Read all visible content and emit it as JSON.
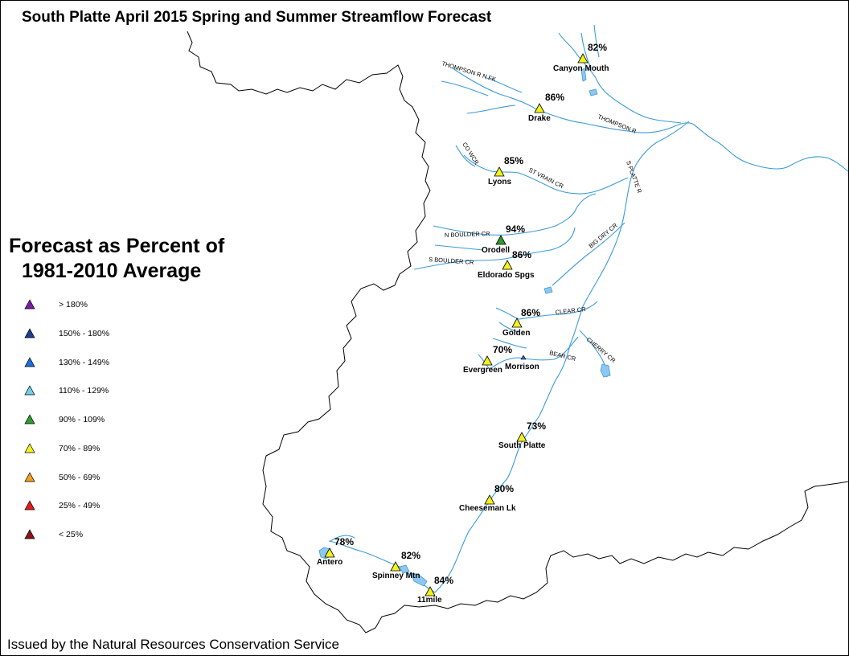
{
  "title": "South Platte April 2015 Spring and Summer Streamflow Forecast",
  "footer": "Issued by the Natural Resources Conservation Service",
  "legend": {
    "title_line1": "Forecast as Percent of",
    "title_line2": "1981-2010 Average",
    "items": [
      {
        "label": "> 180%",
        "color": "#7b1fa2"
      },
      {
        "label": "150% - 180%",
        "color": "#1a3f8f"
      },
      {
        "label": "130% - 149%",
        "color": "#1e6fd9"
      },
      {
        "label": "110% - 129%",
        "color": "#6fd0e8"
      },
      {
        "label": "90% - 109%",
        "color": "#2e9b2e"
      },
      {
        "label": "70% - 89%",
        "color": "#f2f21e"
      },
      {
        "label": "50% - 69%",
        "color": "#f2a01e"
      },
      {
        "label": "25% - 49%",
        "color": "#e21b1b"
      },
      {
        "label": "< 25%",
        "color": "#8b1515"
      }
    ]
  },
  "sites": [
    {
      "name": "Canyon Mouth",
      "percent": "82%",
      "percent_value": 82,
      "color": "#f2f21e"
    },
    {
      "name": "Drake",
      "percent": "86%",
      "percent_value": 86,
      "color": "#f2f21e"
    },
    {
      "name": "Lyons",
      "percent": "85%",
      "percent_value": 85,
      "color": "#f2f21e"
    },
    {
      "name": "Orodell",
      "percent": "94%",
      "percent_value": 94,
      "color": "#2e9b2e"
    },
    {
      "name": "Eldorado Spgs",
      "percent": "86%",
      "percent_value": 86,
      "color": "#f2f21e"
    },
    {
      "name": "Golden",
      "percent": "86%",
      "percent_value": 86,
      "color": "#f2f21e"
    },
    {
      "name": "Evergreen",
      "percent": "70%",
      "percent_value": 70,
      "color": "#f2f21e"
    },
    {
      "name": "Morrison",
      "percent": "",
      "color": "#1e6fd9"
    },
    {
      "name": "South Platte",
      "percent": "73%",
      "percent_value": 73,
      "color": "#f2f21e"
    },
    {
      "name": "Cheeseman Lk",
      "percent": "80%",
      "percent_value": 80,
      "color": "#f2f21e"
    },
    {
      "name": "Antero",
      "percent": "78%",
      "percent_value": 78,
      "color": "#f2f21e"
    },
    {
      "name": "Spinney Mtn",
      "percent": "82%",
      "percent_value": 82,
      "color": "#f2f21e"
    },
    {
      "name": "11mile",
      "percent": "84%",
      "percent_value": 84,
      "color": "#f2f21e"
    }
  ],
  "river_labels": [
    "THOMPSON R N FK",
    "THOMPSON R",
    "CO WCR",
    "ST VRAIN CR",
    "S PLATTE R",
    "N BOULDER CR",
    "S BOULDER CR",
    "BIG DRY CR",
    "CLEAR CR",
    "BEAR CR",
    "CHERRY CR"
  ],
  "colors": {
    "river": "#3a9bd8",
    "lake": "#8ec7ef",
    "boundary": "#000000"
  }
}
